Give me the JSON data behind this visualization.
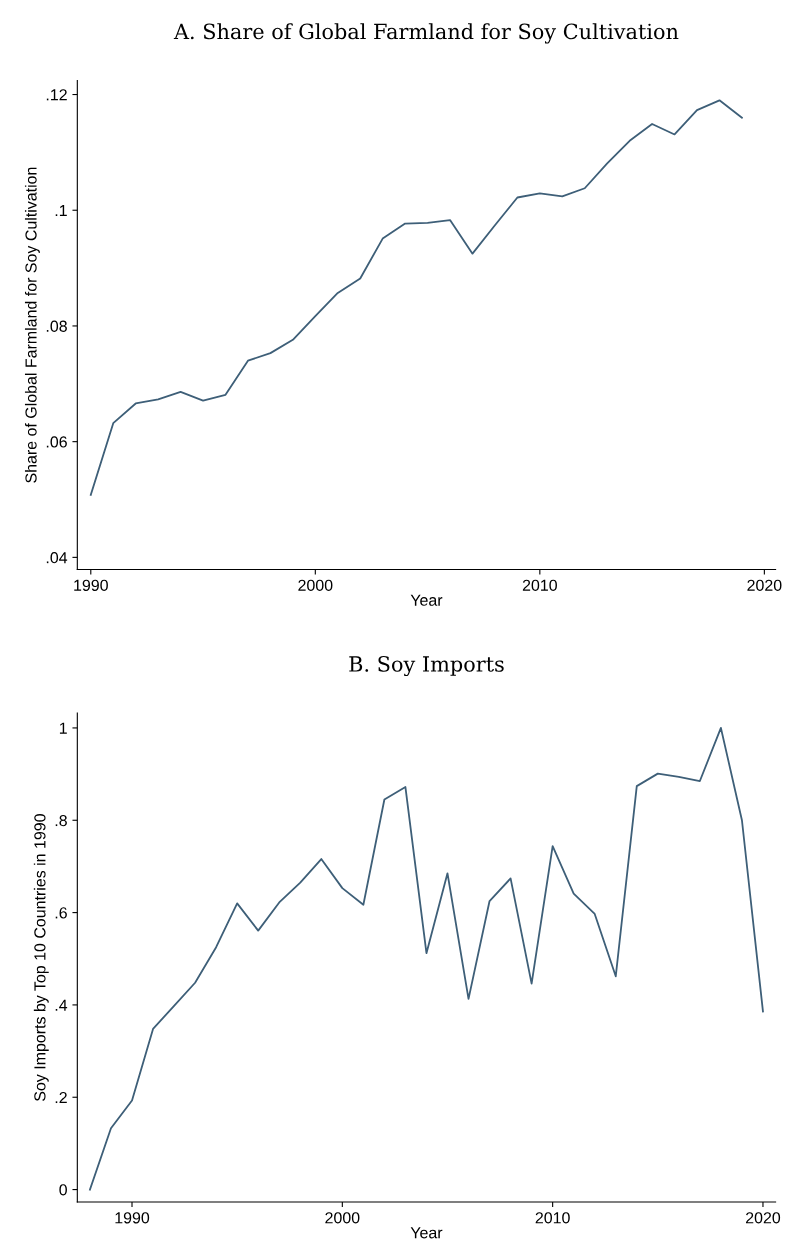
{
  "chart_data": [
    {
      "type": "line",
      "title": "A. Share of Global Farmland for Soy Cultivation",
      "xlabel": "Year",
      "ylabel": "Share of Global Farmland for Soy Cultivation",
      "x": [
        1990,
        1991,
        1992,
        1993,
        1994,
        1995,
        1996,
        1997,
        1998,
        1999,
        2000,
        2001,
        2002,
        2003,
        2004,
        2005,
        2006,
        2007,
        2008,
        2009,
        2010,
        2011,
        2012,
        2013,
        2014,
        2015,
        2016,
        2017,
        2018,
        2019
      ],
      "series": [
        {
          "color": "#3e5f78",
          "values": [
            0.0508,
            0.0632,
            0.0666,
            0.0673,
            0.0686,
            0.0671,
            0.0681,
            0.074,
            0.0753,
            0.0776,
            0.0817,
            0.0857,
            0.0882,
            0.0951,
            0.0977,
            0.0978,
            0.0983,
            0.0925,
            0.0974,
            0.1022,
            0.1029,
            0.1024,
            0.1038,
            0.1081,
            0.112,
            0.1149,
            0.1131,
            0.1173,
            0.119,
            0.116
          ]
        }
      ],
      "xlim": [
        1989.4,
        2020.5
      ],
      "xticks": [
        1990,
        2000,
        2010,
        2020
      ],
      "ylim": [
        0.0379,
        0.1224
      ],
      "yticks": [
        {
          "value": 0.04,
          "label": ".04"
        },
        {
          "value": 0.06,
          "label": ".06"
        },
        {
          "value": 0.08,
          "label": ".08"
        },
        {
          "value": 0.1,
          "label": ".1"
        },
        {
          "value": 0.12,
          "label": ".12"
        }
      ],
      "grid": false,
      "legend": false
    },
    {
      "type": "line",
      "title": "B. Soy Imports",
      "xlabel": "Year",
      "ylabel": "Soy Imports by Top 10 Countries in 1990",
      "x": [
        1988,
        1989,
        1990,
        1991,
        1992,
        1993,
        1994,
        1995,
        1996,
        1997,
        1998,
        1999,
        2000,
        2001,
        2002,
        2003,
        2004,
        2005,
        2006,
        2007,
        2008,
        2009,
        2010,
        2011,
        2012,
        2013,
        2014,
        2015,
        2016,
        2017,
        2018,
        2019,
        2020
      ],
      "series": [
        {
          "color": "#3e5f78",
          "values": [
            0,
            0.133,
            0.193,
            0.348,
            0.398,
            0.448,
            0.525,
            0.62,
            0.561,
            0.622,
            0.665,
            0.716,
            0.653,
            0.617,
            0.845,
            0.872,
            0.512,
            0.685,
            0.413,
            0.625,
            0.674,
            0.446,
            0.744,
            0.641,
            0.597,
            0.462,
            0.874,
            0.901,
            0.894,
            0.885,
            1.0,
            0.8,
            0.386
          ]
        }
      ],
      "xlim": [
        1987.4,
        2020.6
      ],
      "xticks": [
        1990,
        2000,
        2010,
        2020
      ],
      "ylim": [
        -0.027,
        1.032
      ],
      "yticks": [
        0,
        {
          "value": 0.2,
          "label": ".2"
        },
        {
          "value": 0.4,
          "label": ".4"
        },
        {
          "value": 0.6,
          "label": ".6"
        },
        {
          "value": 0.8,
          "label": ".8"
        },
        1
      ],
      "grid": false,
      "legend": false
    }
  ]
}
